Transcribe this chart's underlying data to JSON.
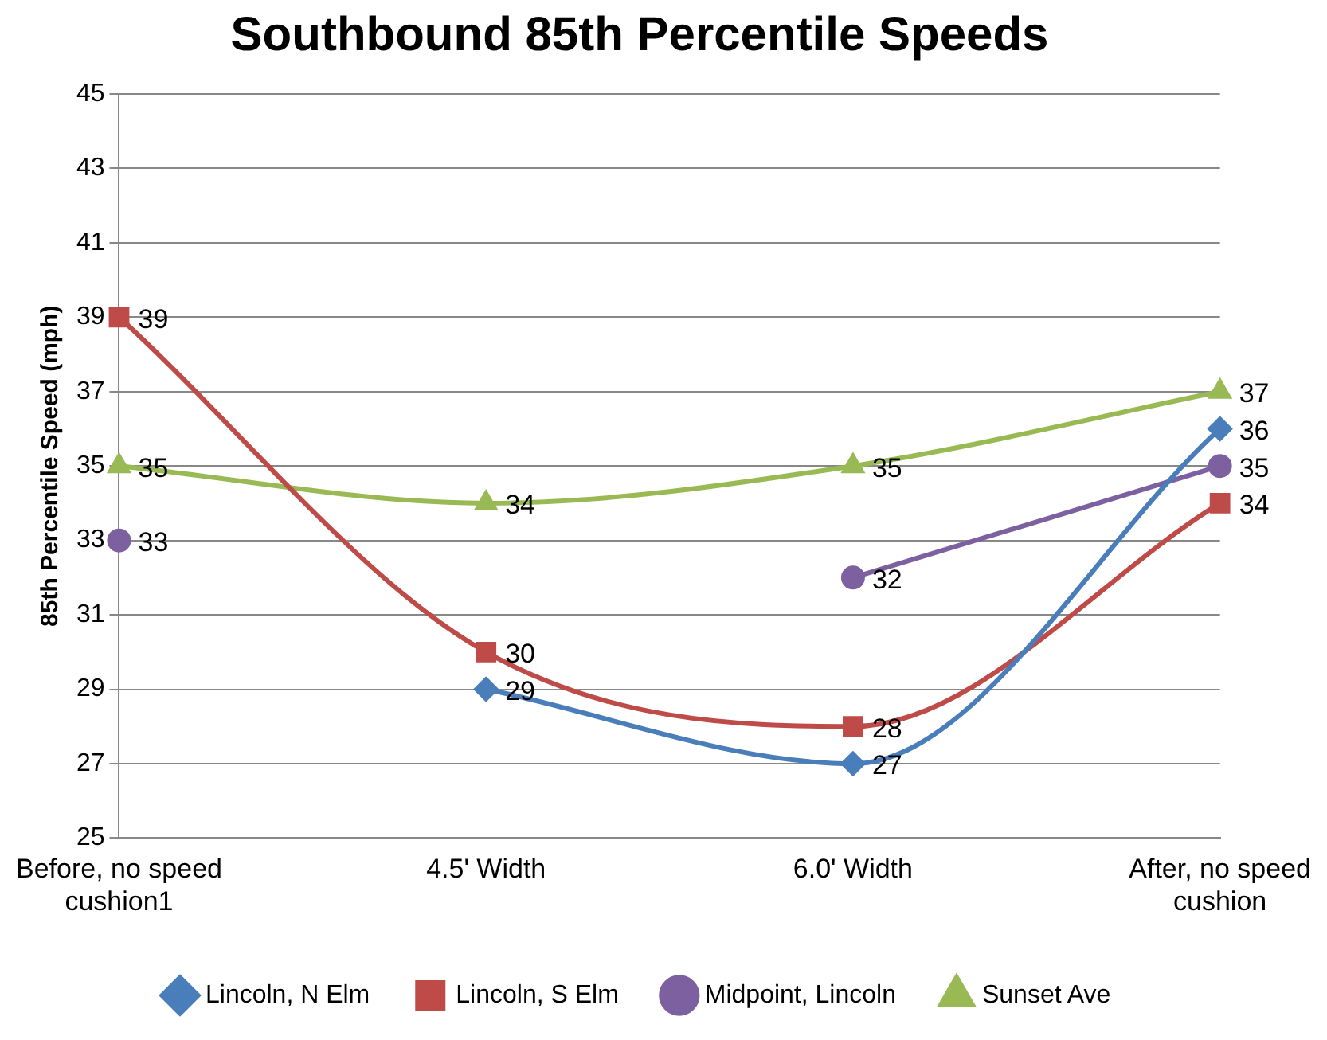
{
  "chart_data": {
    "type": "line",
    "title": "Southbound 85th Percentile Speeds",
    "ylabel": "85th Percentile Speed (mph)",
    "categories": [
      "Before, no speed cushion1",
      "4.5' Width",
      "6.0' Width",
      "After, no speed cushion"
    ],
    "series": [
      {
        "name": "Lincoln, N Elm",
        "color": "#4a7ebb",
        "marker": "diamond",
        "values": [
          null,
          29,
          27,
          36
        ]
      },
      {
        "name": "Lincoln, S Elm",
        "color": "#be4b48",
        "marker": "square",
        "values": [
          39,
          30,
          28,
          34
        ]
      },
      {
        "name": "Midpoint, Lincoln",
        "color": "#7d60a0",
        "marker": "circle",
        "values": [
          33,
          null,
          32,
          35
        ]
      },
      {
        "name": "Sunset Ave",
        "color": "#98b954",
        "marker": "triangle",
        "values": [
          35,
          34,
          35,
          37
        ]
      }
    ],
    "ylim": [
      25,
      45
    ],
    "yticks": [
      25,
      27,
      29,
      31,
      33,
      35,
      37,
      39,
      41,
      43,
      45
    ],
    "grid": "y",
    "legend": "bottom",
    "data_labels": true
  }
}
